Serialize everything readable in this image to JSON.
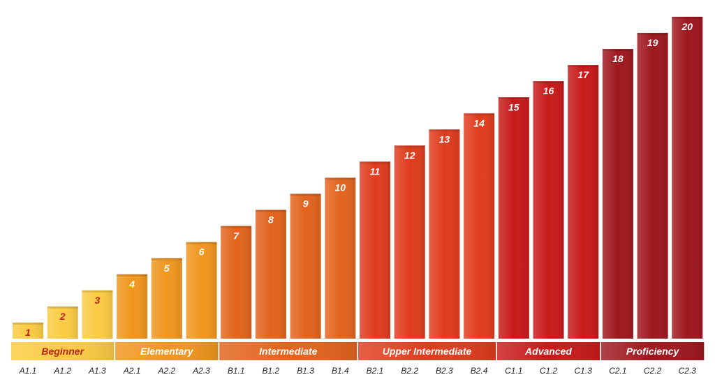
{
  "chart_data": {
    "type": "bar",
    "title": "",
    "xlabel": "",
    "ylabel": "",
    "ylim": [
      0,
      20
    ],
    "grid": false,
    "legend": "none",
    "categories": [
      "A1.1",
      "A1.2",
      "A1.3",
      "A2.1",
      "A2.2",
      "A2.3",
      "B1.1",
      "B1.2",
      "B1.3",
      "B1.4",
      "B2.1",
      "B2.2",
      "B2.3",
      "B2.4",
      "C1.1",
      "C1.2",
      "C1.3",
      "C2.1",
      "C2.2",
      "C2.3"
    ],
    "values": [
      1,
      2,
      3,
      4,
      5,
      6,
      7,
      8,
      9,
      10,
      11,
      12,
      13,
      14,
      15,
      16,
      17,
      18,
      19,
      20
    ],
    "bar_labels": [
      "1",
      "2",
      "3",
      "4",
      "5",
      "6",
      "7",
      "8",
      "9",
      "10",
      "11",
      "12",
      "13",
      "14",
      "15",
      "16",
      "17",
      "18",
      "19",
      "20"
    ],
    "colors": [
      "#fbcb44",
      "#fbcb44",
      "#fbcb44",
      "#f0961e",
      "#f0961e",
      "#f0961e",
      "#e2641d",
      "#e2641d",
      "#e2641d",
      "#e2641d",
      "#e03c1e",
      "#e03c1e",
      "#e03c1e",
      "#e03c1e",
      "#c81a1a",
      "#c81a1a",
      "#c81a1a",
      "#9e181e",
      "#9e181e",
      "#9e181e"
    ],
    "label_colors": [
      "#b8261b",
      "#b8261b",
      "#b8261b",
      "#ffffff",
      "#ffffff",
      "#ffffff",
      "#ffffff",
      "#ffffff",
      "#ffffff",
      "#ffffff",
      "#ffffff",
      "#ffffff",
      "#ffffff",
      "#ffffff",
      "#ffffff",
      "#ffffff",
      "#ffffff",
      "#ffffff",
      "#ffffff",
      "#ffffff"
    ],
    "groups": [
      {
        "label": "Beginner",
        "start": 0,
        "end": 2,
        "color": "#fbcb44",
        "text_color": "#b8261b"
      },
      {
        "label": "Elementary",
        "start": 3,
        "end": 5,
        "color": "#f0961e",
        "text_color": "#ffffff"
      },
      {
        "label": "Intermediate",
        "start": 6,
        "end": 9,
        "color": "#e2641d",
        "text_color": "#ffffff"
      },
      {
        "label": "Upper Intermediate",
        "start": 10,
        "end": 13,
        "color": "#e03c1e",
        "text_color": "#ffffff"
      },
      {
        "label": "Advanced",
        "start": 14,
        "end": 16,
        "color": "#c81a1a",
        "text_color": "#ffffff"
      },
      {
        "label": "Proficiency",
        "start": 17,
        "end": 19,
        "color": "#9e181e",
        "text_color": "#ffffff"
      }
    ]
  }
}
